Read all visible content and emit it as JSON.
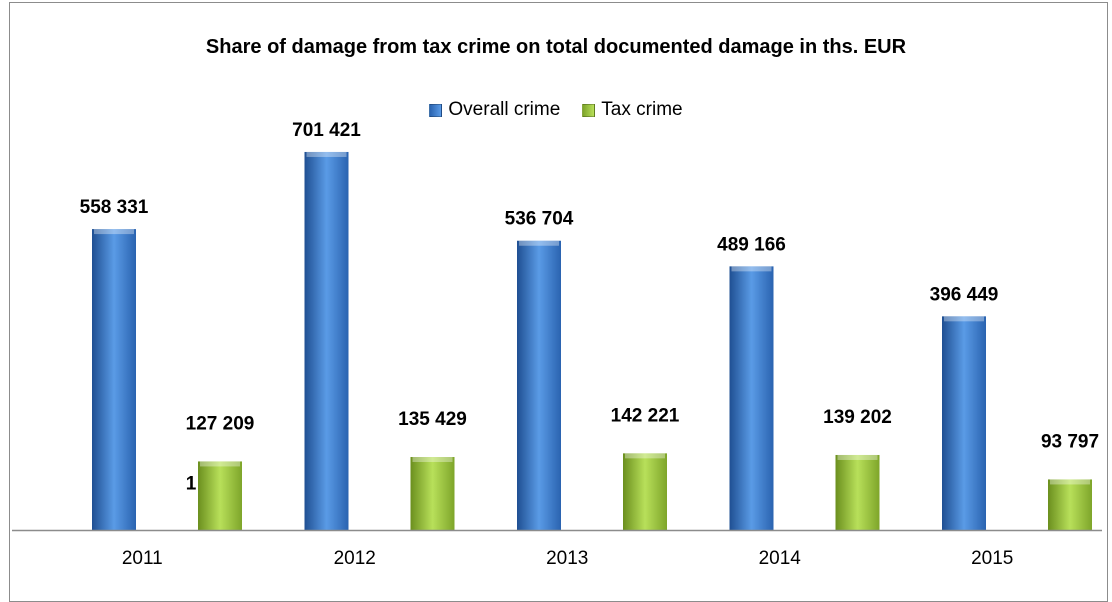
{
  "chart_data": {
    "type": "bar",
    "title": "Share of  damage from tax crime on total documented damage in ths. EUR",
    "categories": [
      "2011",
      "2012",
      "2013",
      "2014",
      "2015"
    ],
    "series": [
      {
        "name": "Overall crime",
        "values": [
          558331,
          701421,
          536704,
          489166,
          396449
        ],
        "labels": [
          "558 331",
          "701 421",
          "536 704",
          "489 166",
          "396 449"
        ]
      },
      {
        "name": "Tax crime",
        "values": [
          127209,
          135429,
          142221,
          139202,
          93797
        ],
        "labels": [
          "127 209",
          "135 429",
          "142 221",
          "139 202",
          "93 797"
        ]
      }
    ],
    "annotations": [
      {
        "category": "2011",
        "text": "1"
      }
    ],
    "ylim": [
      0,
      770000
    ],
    "grid": false,
    "legend": "top",
    "colors": {
      "Overall crime": "#3f7fd0",
      "Tax crime": "#9acd32"
    }
  }
}
